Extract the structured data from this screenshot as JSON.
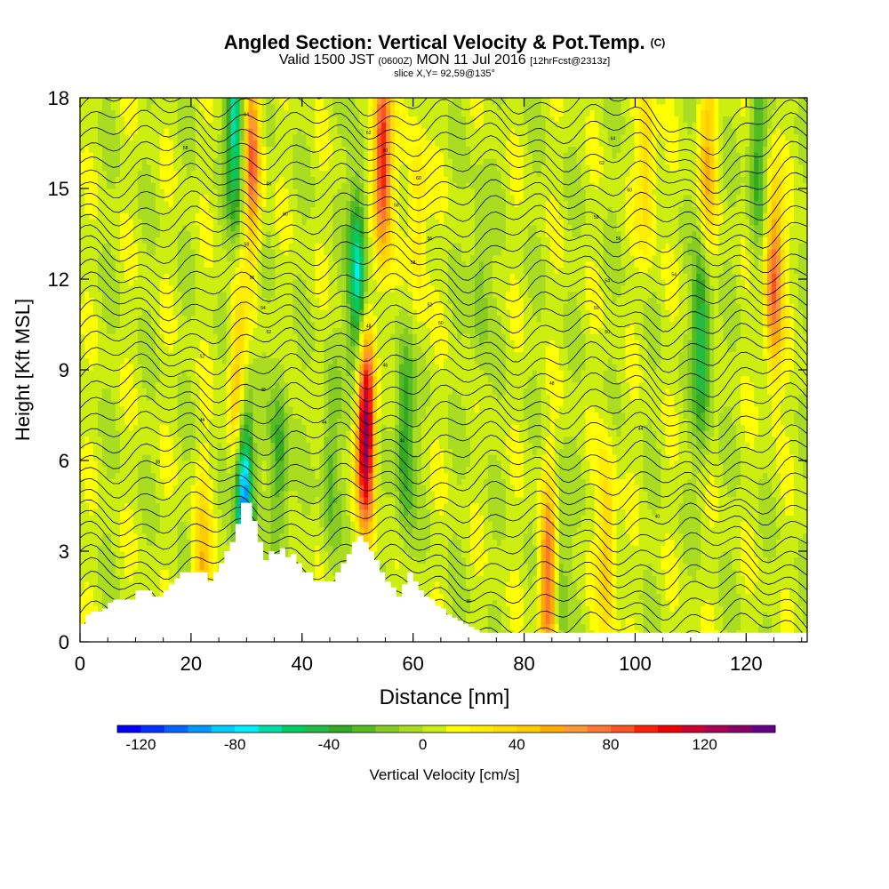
{
  "header": {
    "title": "Angled Section: Vertical Velocity & Pot.Temp.",
    "title_unit": "(C)",
    "subtitle_prefix": "Valid 1500 JST",
    "subtitle_z": "(0600Z)",
    "subtitle_mid": "MON 11 Jul 2016",
    "subtitle_fcst": "[12hrFcst@2313z]",
    "slice": "slice X,Y= 92,59@135°"
  },
  "chart_data": {
    "type": "heatmap",
    "xlabel": "Distance [nm]",
    "ylabel": "Height [Kft MSL]",
    "xlim": [
      0,
      131
    ],
    "ylim": [
      0,
      18
    ],
    "x_ticks": [
      "0",
      "20",
      "40",
      "60",
      "80",
      "100",
      "120"
    ],
    "y_ticks": [
      "0",
      "3",
      "6",
      "9",
      "12",
      "15",
      "18"
    ],
    "colorbar": {
      "label": "Vertical Velocity [cm/s]",
      "ticks": [
        "-120",
        "-80",
        "-40",
        "0",
        "40",
        "80",
        "120"
      ],
      "range": [
        -130,
        140
      ],
      "step": 10,
      "colors": [
        "#0000ff",
        "#0033ff",
        "#0066ff",
        "#0099ff",
        "#00ccff",
        "#00eeff",
        "#00ddaa",
        "#00cc66",
        "#22bb44",
        "#33aa22",
        "#55bb22",
        "#88cc22",
        "#aadd22",
        "#ccee11",
        "#ffff00",
        "#ffee00",
        "#ffdd00",
        "#ffcc00",
        "#ffaa00",
        "#ff9933",
        "#ff7733",
        "#ff5522",
        "#ff2200",
        "#ee0000",
        "#cc0033",
        "#aa0055",
        "#880066",
        "#660088"
      ]
    },
    "updrafts": [
      {
        "x": 22,
        "y": 2,
        "w": 45
      },
      {
        "x": 28.5,
        "y": 8,
        "w": 60
      },
      {
        "x": 31,
        "y": 16,
        "w": 75
      },
      {
        "x": 51.5,
        "y": 7,
        "w": 135
      },
      {
        "x": 54.5,
        "y": 16,
        "w": 105
      },
      {
        "x": 61,
        "y": 14,
        "w": 30
      },
      {
        "x": 84.5,
        "y": 2,
        "w": 90
      },
      {
        "x": 95,
        "y": 3,
        "w": 45
      },
      {
        "x": 102,
        "y": 16,
        "w": 40
      },
      {
        "x": 113,
        "y": 16,
        "w": 45
      },
      {
        "x": 125,
        "y": 12,
        "w": 80
      }
    ],
    "downdrafts": [
      {
        "x": 29.5,
        "y": 5,
        "w": -120
      },
      {
        "x": 28,
        "y": 17,
        "w": -75
      },
      {
        "x": 36,
        "y": 6,
        "w": -40
      },
      {
        "x": 45,
        "y": 6,
        "w": -30
      },
      {
        "x": 50,
        "y": 12,
        "w": -80
      },
      {
        "x": 58.5,
        "y": 7,
        "w": -50
      },
      {
        "x": 86,
        "y": 2,
        "w": -40
      },
      {
        "x": 112,
        "y": 10,
        "w": -60
      },
      {
        "x": 122,
        "y": 16,
        "w": -40
      },
      {
        "x": 72,
        "y": 12,
        "w": -25
      }
    ],
    "terrain": {
      "x": [
        0,
        1,
        2,
        4,
        5,
        6,
        10,
        11,
        13,
        15,
        16,
        17,
        18,
        19,
        22,
        23,
        24,
        25,
        26,
        27,
        28,
        29,
        30,
        31,
        32,
        33,
        34,
        35,
        36,
        37,
        38,
        39,
        40,
        42,
        44,
        46,
        47,
        48,
        49,
        50,
        51,
        52,
        53,
        54,
        55,
        56,
        57,
        58,
        59,
        60,
        61,
        62,
        63,
        64,
        65,
        66,
        67,
        68,
        69,
        70,
        71,
        72
      ],
      "h": [
        0.6,
        0.9,
        1.0,
        1.1,
        1.3,
        1.4,
        1.7,
        1.7,
        1.5,
        1.7,
        1.9,
        2.1,
        2.3,
        2.3,
        2.3,
        2.0,
        2.3,
        2.6,
        3.0,
        3.3,
        3.9,
        4.6,
        4.6,
        4.0,
        3.3,
        2.7,
        3.0,
        2.9,
        3.1,
        2.8,
        2.9,
        2.6,
        2.3,
        2.0,
        2.0,
        2.3,
        2.6,
        2.9,
        3.3,
        3.5,
        3.3,
        3.0,
        2.7,
        2.3,
        2.0,
        1.8,
        1.5,
        1.9,
        2.3,
        2.0,
        1.7,
        1.5,
        1.4,
        1.2,
        1.1,
        0.9,
        0.8,
        0.7,
        0.6,
        0.5,
        0.4,
        0.3
      ]
    },
    "theta_contours": {
      "count": 40,
      "surface_theta": 0,
      "contour_labels": [
        {
          "x": 30,
          "y": 17.4,
          "text": "64"
        },
        {
          "x": 19,
          "y": 16.3,
          "text": "58"
        },
        {
          "x": 34,
          "y": 15.1,
          "text": "60"
        },
        {
          "x": 37,
          "y": 14.1,
          "text": "60"
        },
        {
          "x": 30,
          "y": 13.1,
          "text": "58"
        },
        {
          "x": 31,
          "y": 12.0,
          "text": "56"
        },
        {
          "x": 33,
          "y": 11.0,
          "text": "54"
        },
        {
          "x": 34,
          "y": 10.2,
          "text": "52"
        },
        {
          "x": 22,
          "y": 9.4,
          "text": "52"
        },
        {
          "x": 33,
          "y": 8.3,
          "text": "48"
        },
        {
          "x": 22,
          "y": 7.3,
          "text": "44"
        },
        {
          "x": 14,
          "y": 5.9,
          "text": "38"
        },
        {
          "x": 44,
          "y": 7.2,
          "text": "44"
        },
        {
          "x": 52,
          "y": 16.8,
          "text": "62"
        },
        {
          "x": 55,
          "y": 16.2,
          "text": "60"
        },
        {
          "x": 61,
          "y": 15.3,
          "text": "60"
        },
        {
          "x": 57,
          "y": 14.4,
          "text": "58"
        },
        {
          "x": 63,
          "y": 13.3,
          "text": "56"
        },
        {
          "x": 60,
          "y": 12.5,
          "text": "58"
        },
        {
          "x": 63,
          "y": 11.1,
          "text": "52"
        },
        {
          "x": 65,
          "y": 10.5,
          "text": "50"
        },
        {
          "x": 52,
          "y": 10.4,
          "text": "48"
        },
        {
          "x": 55,
          "y": 9.1,
          "text": "46"
        },
        {
          "x": 58,
          "y": 6.6,
          "text": "44"
        },
        {
          "x": 96,
          "y": 16.6,
          "text": "64"
        },
        {
          "x": 94,
          "y": 15.8,
          "text": "62"
        },
        {
          "x": 99,
          "y": 14.9,
          "text": "60"
        },
        {
          "x": 93,
          "y": 14.0,
          "text": "58"
        },
        {
          "x": 97,
          "y": 13.3,
          "text": "56"
        },
        {
          "x": 95,
          "y": 11.9,
          "text": "54"
        },
        {
          "x": 107,
          "y": 12.1,
          "text": "54"
        },
        {
          "x": 93,
          "y": 11.0,
          "text": "50"
        },
        {
          "x": 95,
          "y": 10.2,
          "text": "50"
        },
        {
          "x": 85,
          "y": 8.5,
          "text": "48"
        },
        {
          "x": 101,
          "y": 7.0,
          "text": "44"
        },
        {
          "x": 104,
          "y": 4.1,
          "text": "40"
        },
        {
          "x": 70,
          "y": 1.3,
          "text": "36"
        }
      ]
    }
  }
}
